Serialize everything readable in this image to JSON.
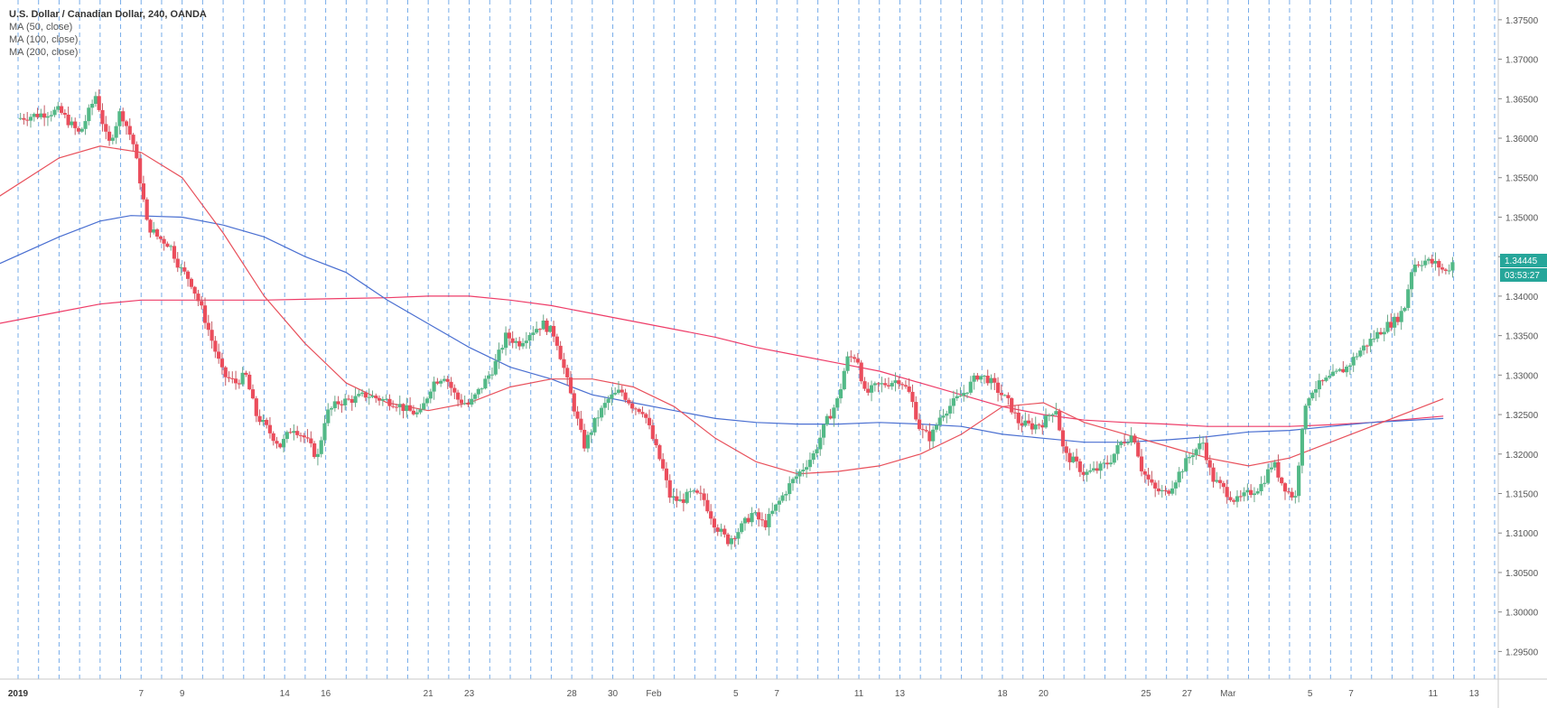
{
  "header": {
    "title": "U.S. Dollar / Canadian Dollar, 240, OANDA",
    "indicators": [
      "MA (50, close)",
      "MA (100, close)",
      "MA (200, close)"
    ]
  },
  "badges": {
    "last_price": "1.34445",
    "countdown": "03:53:27",
    "color": "#26a69a"
  },
  "colors": {
    "up": "#53b987",
    "down": "#eb4d5c",
    "ma50": "#e8505b",
    "ma100": "#4a6fd1",
    "ma200": "#ee3c68",
    "vgrid": "#4a90e2"
  },
  "chart_data": {
    "type": "candlestick",
    "title": "U.S. Dollar / Canadian Dollar, 240, OANDA",
    "ylim": [
      1.2915,
      1.3775
    ],
    "y_ticks": [
      "1.37500",
      "1.37000",
      "1.36500",
      "1.36000",
      "1.35500",
      "1.35000",
      "1.34500",
      "1.34000",
      "1.33500",
      "1.33000",
      "1.32500",
      "1.32000",
      "1.31500",
      "1.31000",
      "1.30500",
      "1.30000",
      "1.29500"
    ],
    "x_ticks": [
      {
        "label": "2019",
        "bold": true,
        "day": 1
      },
      {
        "label": "7",
        "day": 7
      },
      {
        "label": "9",
        "day": 9
      },
      {
        "label": "14",
        "day": 14
      },
      {
        "label": "16",
        "day": 16
      },
      {
        "label": "21",
        "day": 21
      },
      {
        "label": "23",
        "day": 23
      },
      {
        "label": "28",
        "day": 28
      },
      {
        "label": "30",
        "day": 30
      },
      {
        "label": "Feb",
        "day": 32
      },
      {
        "label": "5",
        "day": 36
      },
      {
        "label": "7",
        "day": 38
      },
      {
        "label": "11",
        "day": 42
      },
      {
        "label": "13",
        "day": 44
      },
      {
        "label": "18",
        "day": 49
      },
      {
        "label": "20",
        "day": 51
      },
      {
        "label": "25",
        "day": 56
      },
      {
        "label": "27",
        "day": 58
      },
      {
        "label": "Mar",
        "day": 60
      },
      {
        "label": "5",
        "day": 64
      },
      {
        "label": "7",
        "day": 66
      },
      {
        "label": "11",
        "day": 70
      },
      {
        "label": "13",
        "day": 72
      }
    ],
    "price_points": [
      [
        0,
        1.3625
      ],
      [
        1,
        1.363
      ],
      [
        2,
        1.3635
      ],
      [
        3,
        1.3605
      ],
      [
        3.8,
        1.3655
      ],
      [
        4.4,
        1.359
      ],
      [
        5,
        1.3635
      ],
      [
        5.6,
        1.3595
      ],
      [
        6,
        1.354
      ],
      [
        6.3,
        1.349
      ],
      [
        6.8,
        1.3475
      ],
      [
        7.4,
        1.3465
      ],
      [
        7.9,
        1.3435
      ],
      [
        8.4,
        1.342
      ],
      [
        9,
        1.338
      ],
      [
        9.5,
        1.334
      ],
      [
        10,
        1.33
      ],
      [
        10.6,
        1.329
      ],
      [
        11.1,
        1.33
      ],
      [
        11.6,
        1.325
      ],
      [
        12.2,
        1.323
      ],
      [
        12.8,
        1.321
      ],
      [
        13.4,
        1.3235
      ],
      [
        14,
        1.322
      ],
      [
        14.6,
        1.3195
      ],
      [
        15,
        1.325
      ],
      [
        15.6,
        1.3265
      ],
      [
        16.4,
        1.327
      ],
      [
        17,
        1.3275
      ],
      [
        17.6,
        1.327
      ],
      [
        18.4,
        1.3265
      ],
      [
        19,
        1.3255
      ],
      [
        19.6,
        1.325
      ],
      [
        20.2,
        1.329
      ],
      [
        20.8,
        1.33
      ],
      [
        21.4,
        1.327
      ],
      [
        22,
        1.3262
      ],
      [
        22.6,
        1.3285
      ],
      [
        23.2,
        1.331
      ],
      [
        23.8,
        1.335
      ],
      [
        24.4,
        1.334
      ],
      [
        25,
        1.3355
      ],
      [
        25.6,
        1.3365
      ],
      [
        26.2,
        1.335
      ],
      [
        26.8,
        1.329
      ],
      [
        27.2,
        1.325
      ],
      [
        27.6,
        1.321
      ],
      [
        28.2,
        1.3245
      ],
      [
        28.8,
        1.327
      ],
      [
        29.4,
        1.328
      ],
      [
        30,
        1.326
      ],
      [
        30.5,
        1.3255
      ],
      [
        31,
        1.3215
      ],
      [
        31.4,
        1.3185
      ],
      [
        31.8,
        1.3145
      ],
      [
        32.3,
        1.314
      ],
      [
        32.8,
        1.315
      ],
      [
        33.4,
        1.3145
      ],
      [
        34,
        1.311
      ],
      [
        34.6,
        1.309
      ],
      [
        35.2,
        1.3105
      ],
      [
        35.8,
        1.3125
      ],
      [
        36.4,
        1.311
      ],
      [
        37,
        1.3135
      ],
      [
        37.6,
        1.316
      ],
      [
        38.2,
        1.318
      ],
      [
        38.8,
        1.32
      ],
      [
        39.4,
        1.324
      ],
      [
        40,
        1.327
      ],
      [
        40.4,
        1.332
      ],
      [
        40.9,
        1.3325
      ],
      [
        41.3,
        1.3275
      ],
      [
        41.8,
        1.3285
      ],
      [
        42.4,
        1.329
      ],
      [
        43,
        1.3295
      ],
      [
        43.5,
        1.3275
      ],
      [
        44,
        1.323
      ],
      [
        44.5,
        1.322
      ],
      [
        45,
        1.325
      ],
      [
        45.6,
        1.3265
      ],
      [
        46.2,
        1.328
      ],
      [
        46.8,
        1.33
      ],
      [
        47.3,
        1.3295
      ],
      [
        47.8,
        1.328
      ],
      [
        48.3,
        1.3265
      ],
      [
        48.8,
        1.324
      ],
      [
        49.4,
        1.3235
      ],
      [
        50,
        1.324
      ],
      [
        50.6,
        1.326
      ],
      [
        51,
        1.32
      ],
      [
        51.5,
        1.319
      ],
      [
        52,
        1.3175
      ],
      [
        52.6,
        1.318
      ],
      [
        53.2,
        1.319
      ],
      [
        53.8,
        1.3215
      ],
      [
        54.4,
        1.3225
      ],
      [
        54.8,
        1.318
      ],
      [
        55.4,
        1.3155
      ],
      [
        56,
        1.315
      ],
      [
        56.6,
        1.3175
      ],
      [
        57.2,
        1.32
      ],
      [
        57.8,
        1.3215
      ],
      [
        58.2,
        1.317
      ],
      [
        58.8,
        1.3155
      ],
      [
        59.4,
        1.314
      ],
      [
        60,
        1.315
      ],
      [
        60.6,
        1.316
      ],
      [
        61.2,
        1.319
      ],
      [
        61.6,
        1.3165
      ],
      [
        62,
        1.315
      ],
      [
        62.3,
        1.3145
      ],
      [
        62.6,
        1.3235
      ],
      [
        63,
        1.328
      ],
      [
        63.6,
        1.329
      ],
      [
        64.2,
        1.33
      ],
      [
        64.8,
        1.331
      ],
      [
        65.4,
        1.333
      ],
      [
        66,
        1.3345
      ],
      [
        66.6,
        1.336
      ],
      [
        67.2,
        1.337
      ],
      [
        67.6,
        1.3385
      ],
      [
        68,
        1.344
      ],
      [
        68.6,
        1.3445
      ],
      [
        69.2,
        1.344
      ],
      [
        69.6,
        1.343
      ],
      [
        70,
        1.34445
      ]
    ],
    "ma50": [
      [
        0,
        1.3525
      ],
      [
        3,
        1.3575
      ],
      [
        5,
        1.359
      ],
      [
        7,
        1.3582
      ],
      [
        9,
        1.355
      ],
      [
        11,
        1.348
      ],
      [
        13,
        1.34
      ],
      [
        15,
        1.334
      ],
      [
        17,
        1.329
      ],
      [
        19,
        1.3265
      ],
      [
        21,
        1.3255
      ],
      [
        23,
        1.3265
      ],
      [
        25,
        1.3285
      ],
      [
        27,
        1.3295
      ],
      [
        29,
        1.3295
      ],
      [
        31,
        1.3285
      ],
      [
        33,
        1.326
      ],
      [
        35,
        1.322
      ],
      [
        37,
        1.319
      ],
      [
        39,
        1.3175
      ],
      [
        41,
        1.3178
      ],
      [
        43,
        1.3185
      ],
      [
        45,
        1.32
      ],
      [
        47,
        1.3225
      ],
      [
        49,
        1.326
      ],
      [
        51,
        1.3265
      ],
      [
        53,
        1.324
      ],
      [
        55,
        1.3225
      ],
      [
        57,
        1.321
      ],
      [
        59,
        1.3195
      ],
      [
        61,
        1.3185
      ],
      [
        63,
        1.3195
      ],
      [
        65,
        1.3215
      ],
      [
        67,
        1.3235
      ],
      [
        69,
        1.3255
      ],
      [
        70.5,
        1.327
      ]
    ],
    "ma100": [
      [
        0,
        1.344
      ],
      [
        3,
        1.3475
      ],
      [
        5,
        1.3495
      ],
      [
        6.5,
        1.3502
      ],
      [
        9,
        1.35
      ],
      [
        11,
        1.349
      ],
      [
        13,
        1.3475
      ],
      [
        15,
        1.345
      ],
      [
        17,
        1.343
      ],
      [
        19,
        1.3395
      ],
      [
        21,
        1.3365
      ],
      [
        23,
        1.3335
      ],
      [
        25,
        1.331
      ],
      [
        27,
        1.3295
      ],
      [
        29,
        1.3275
      ],
      [
        31,
        1.3265
      ],
      [
        33,
        1.3255
      ],
      [
        35,
        1.3245
      ],
      [
        37,
        1.324
      ],
      [
        39,
        1.3238
      ],
      [
        41,
        1.3238
      ],
      [
        43,
        1.324
      ],
      [
        45,
        1.3238
      ],
      [
        47,
        1.3235
      ],
      [
        49,
        1.3225
      ],
      [
        51,
        1.322
      ],
      [
        53,
        1.3215
      ],
      [
        55,
        1.3215
      ],
      [
        57,
        1.3218
      ],
      [
        59,
        1.3222
      ],
      [
        61,
        1.3228
      ],
      [
        63,
        1.323
      ],
      [
        65,
        1.3235
      ],
      [
        67,
        1.324
      ],
      [
        70.5,
        1.3245
      ]
    ],
    "ma200": [
      [
        0,
        1.3365
      ],
      [
        3,
        1.338
      ],
      [
        5,
        1.339
      ],
      [
        7,
        1.3395
      ],
      [
        9,
        1.3395
      ],
      [
        11,
        1.3395
      ],
      [
        13,
        1.3395
      ],
      [
        15,
        1.3396
      ],
      [
        17,
        1.3397
      ],
      [
        19,
        1.3398
      ],
      [
        21,
        1.34
      ],
      [
        23,
        1.34
      ],
      [
        25,
        1.3395
      ],
      [
        27,
        1.3388
      ],
      [
        29,
        1.3378
      ],
      [
        31,
        1.3368
      ],
      [
        33,
        1.3358
      ],
      [
        35,
        1.3348
      ],
      [
        37,
        1.3335
      ],
      [
        39,
        1.3325
      ],
      [
        41,
        1.3315
      ],
      [
        43,
        1.3305
      ],
      [
        45,
        1.329
      ],
      [
        47,
        1.3275
      ],
      [
        49,
        1.326
      ],
      [
        51,
        1.325
      ],
      [
        53,
        1.3243
      ],
      [
        55,
        1.324
      ],
      [
        57,
        1.3238
      ],
      [
        59,
        1.3235
      ],
      [
        61,
        1.3235
      ],
      [
        63,
        1.3235
      ],
      [
        65,
        1.3237
      ],
      [
        67,
        1.324
      ],
      [
        70.5,
        1.3248
      ]
    ]
  }
}
